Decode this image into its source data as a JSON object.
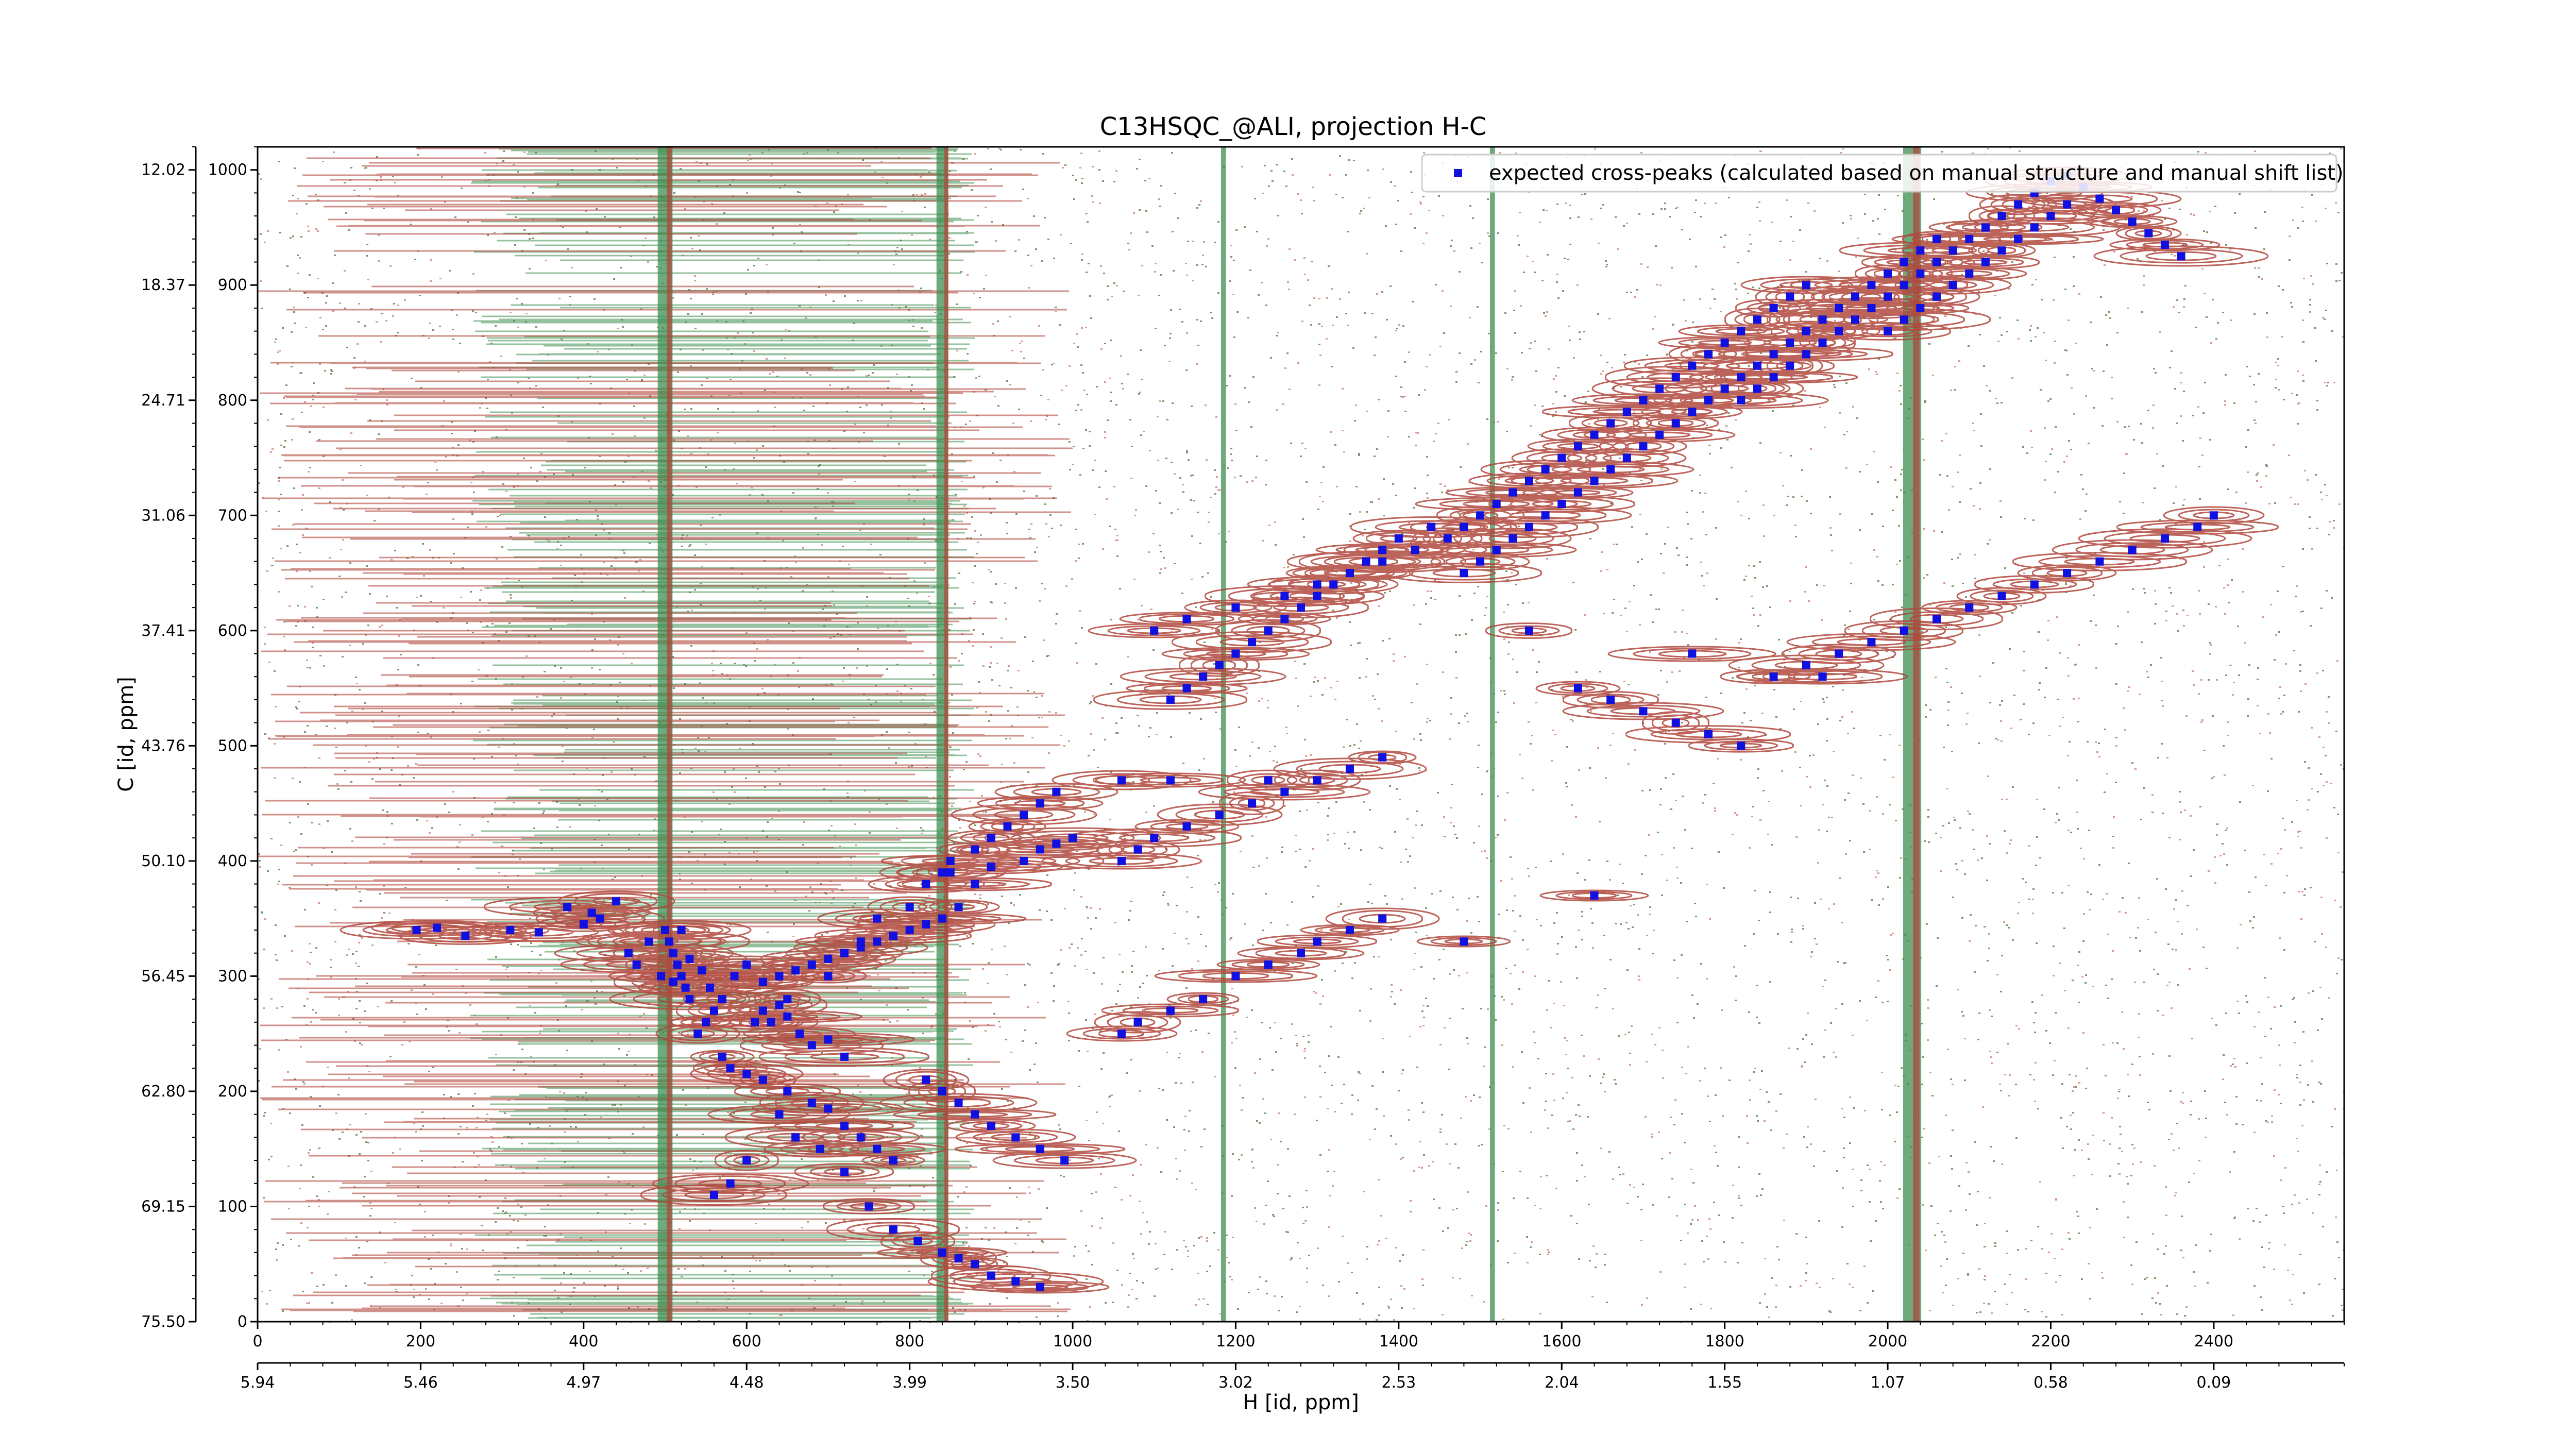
{
  "chart_data": {
    "type": "scatter",
    "title": "C13HSQC_@ALI, projection H-C",
    "xlabel": "H [id, ppm]",
    "ylabel": "C [id, ppm]",
    "x_index_range": [
      0,
      2560
    ],
    "y_index_range": [
      0,
      1020
    ],
    "x_index_ticks": [
      0,
      200,
      400,
      600,
      800,
      1000,
      1200,
      1400,
      1600,
      1800,
      2000,
      2200,
      2400
    ],
    "x_ppm_ticks": [
      "5.94",
      "5.46",
      "4.97",
      "4.48",
      "3.99",
      "3.50",
      "3.02",
      "2.53",
      "2.04",
      "1.55",
      "1.07",
      "0.58",
      "0.09"
    ],
    "y_index_ticks": [
      0,
      100,
      200,
      300,
      400,
      500,
      600,
      700,
      800,
      900,
      1000
    ],
    "y_ppm_ticks": [
      "75.50",
      "69.15",
      "62.80",
      "56.45",
      "50.10",
      "43.76",
      "37.41",
      "31.06",
      "24.71",
      "18.37",
      "12.02"
    ],
    "grid": false,
    "legend_position": "top-right",
    "colors": {
      "positive_contours": "#b0483d",
      "negative_contours": "#3e8e4f",
      "expected_peaks": "#1010e0"
    },
    "series": [
      {
        "name": "expected cross-peaks (calculated based on manual structure and manual shift list)",
        "marker": "x",
        "x_index": [
          195,
          220,
          255,
          310,
          345,
          380,
          400,
          410,
          420,
          440,
          455,
          465,
          480,
          495,
          510,
          520,
          530,
          545,
          555,
          570,
          585,
          600,
          610,
          620,
          640,
          650,
          665,
          680,
          700,
          720,
          500,
          505,
          510,
          515,
          520,
          525,
          530,
          540,
          550,
          560,
          570,
          580,
          600,
          620,
          650,
          680,
          700,
          720,
          740,
          760,
          780,
          560,
          580,
          600,
          640,
          660,
          690,
          720,
          750,
          780,
          810,
          840,
          860,
          880,
          900,
          930,
          960,
          820,
          840,
          860,
          880,
          900,
          930,
          960,
          990,
          630,
          650,
          700,
          720,
          740,
          760,
          800,
          820,
          840,
          850,
          880,
          900,
          920,
          940,
          960,
          980,
          1060,
          1080,
          1120,
          1160,
          1200,
          1240,
          1280,
          1300,
          1340,
          1380,
          1060,
          1080,
          1100,
          1140,
          1180,
          1220,
          1260,
          1300,
          1340,
          1380,
          1120,
          1140,
          1160,
          1180,
          1200,
          1220,
          1240,
          1260,
          1280,
          1300,
          1320,
          1340,
          1360,
          1380,
          1400,
          1440,
          1100,
          1140,
          1200,
          1260,
          1300,
          1340,
          1380,
          1420,
          1460,
          1480,
          1500,
          1520,
          1540,
          1560,
          1580,
          1600,
          1620,
          1640,
          1660,
          1680,
          1700,
          1720,
          1740,
          1760,
          1780,
          1800,
          1820,
          1840,
          1860,
          1880,
          1900,
          1480,
          1500,
          1520,
          1540,
          1560,
          1580,
          1600,
          1620,
          1640,
          1660,
          1680,
          1700,
          1720,
          1740,
          1760,
          1780,
          1800,
          1820,
          1840,
          1860,
          1880,
          1900,
          1920,
          1940,
          1960,
          1980,
          2000,
          2020,
          2040,
          2060,
          1820,
          1840,
          1860,
          1880,
          1900,
          1920,
          1940,
          1960,
          1980,
          2000,
          2020,
          2040,
          2060,
          2080,
          2100,
          2120,
          2140,
          2160,
          2180,
          2200,
          2220,
          2240,
          2260,
          2280,
          2300,
          2320,
          2340,
          2360,
          2000,
          2020,
          2040,
          2060,
          2080,
          2100,
          2120,
          2140,
          2160,
          2180,
          2200,
          2220,
          1620,
          1660,
          1700,
          1740,
          1780,
          1820,
          1860,
          1900,
          1940,
          1980,
          2020,
          2060,
          2100,
          2140,
          2180,
          2220,
          2260,
          2300,
          2340,
          2380,
          2400,
          1480,
          1240,
          1120,
          1060,
          1640,
          1920,
          1760,
          1560,
          850,
          900,
          940,
          960,
          980,
          1000,
          880,
          860,
          840,
          820,
          800,
          780,
          760,
          740,
          720,
          700,
          680,
          660,
          640,
          620
        ],
        "y_index": [
          340,
          342,
          335,
          340,
          338,
          360,
          345,
          355,
          350,
          365,
          320,
          310,
          330,
          300,
          295,
          340,
          315,
          305,
          290,
          280,
          300,
          310,
          260,
          270,
          275,
          265,
          250,
          240,
          245,
          230,
          340,
          330,
          320,
          310,
          300,
          290,
          280,
          250,
          260,
          270,
          230,
          220,
          215,
          210,
          200,
          190,
          185,
          170,
          160,
          150,
          140,
          110,
          120,
          140,
          180,
          160,
          150,
          130,
          100,
          80,
          70,
          60,
          55,
          50,
          40,
          35,
          30,
          210,
          200,
          190,
          180,
          170,
          160,
          150,
          140,
          260,
          280,
          300,
          320,
          330,
          350,
          360,
          380,
          390,
          400,
          410,
          420,
          430,
          440,
          450,
          460,
          250,
          260,
          270,
          280,
          300,
          310,
          320,
          330,
          340,
          350,
          400,
          410,
          420,
          430,
          440,
          450,
          460,
          470,
          480,
          490,
          540,
          550,
          560,
          570,
          580,
          590,
          600,
          610,
          620,
          630,
          640,
          650,
          660,
          670,
          680,
          690,
          600,
          610,
          620,
          630,
          640,
          650,
          660,
          670,
          680,
          690,
          700,
          710,
          720,
          730,
          740,
          750,
          760,
          770,
          780,
          790,
          800,
          810,
          820,
          830,
          840,
          850,
          860,
          870,
          880,
          890,
          900,
          650,
          660,
          670,
          680,
          690,
          700,
          710,
          720,
          730,
          740,
          750,
          760,
          770,
          780,
          790,
          800,
          810,
          820,
          830,
          840,
          850,
          860,
          870,
          880,
          890,
          900,
          910,
          920,
          930,
          940,
          800,
          810,
          820,
          830,
          840,
          850,
          860,
          870,
          880,
          890,
          900,
          910,
          920,
          930,
          940,
          950,
          960,
          970,
          980,
          990,
          995,
          985,
          975,
          965,
          955,
          945,
          935,
          925,
          860,
          870,
          880,
          890,
          900,
          910,
          920,
          930,
          940,
          950,
          960,
          970,
          550,
          540,
          530,
          520,
          510,
          500,
          560,
          570,
          580,
          590,
          600,
          610,
          620,
          630,
          640,
          650,
          660,
          670,
          680,
          690,
          700,
          330,
          470,
          470,
          470,
          370,
          560,
          580,
          600,
          390,
          395,
          400,
          410,
          415,
          420,
          380,
          360,
          350,
          345,
          340,
          335,
          330,
          325,
          320,
          315,
          310,
          305,
          300,
          295
        ]
      }
    ],
    "contours": {
      "positive_label": "",
      "negative_label": ""
    }
  }
}
